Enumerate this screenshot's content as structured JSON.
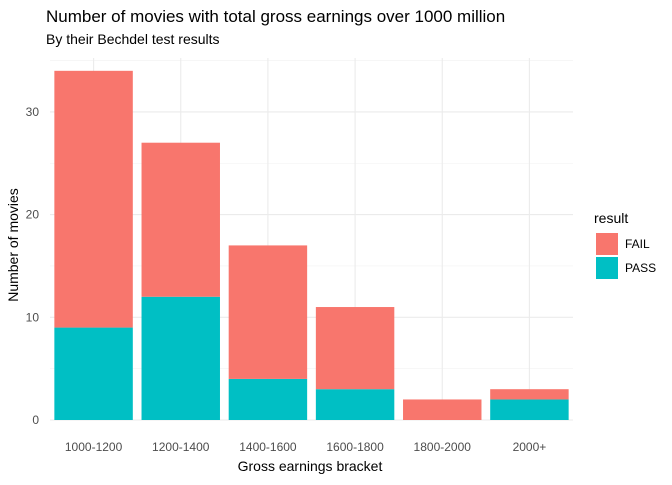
{
  "chart_data": {
    "type": "bar",
    "stacked": true,
    "title": "Number of movies with total gross earnings over 1000 million",
    "subtitle": "By their Bechdel test results",
    "xlabel": "Gross earnings bracket",
    "ylabel": "Number of movies",
    "categories": [
      "1000-1200",
      "1200-1400",
      "1400-1600",
      "1600-1800",
      "1800-2000",
      "2000+"
    ],
    "series": [
      {
        "name": "PASS",
        "color": "#00BFC4",
        "values": [
          9,
          12,
          4,
          3,
          0,
          2
        ]
      },
      {
        "name": "FAIL",
        "color": "#F8766D",
        "values": [
          25,
          15,
          13,
          8,
          2,
          1
        ]
      }
    ],
    "ylim": [
      0,
      35
    ],
    "yticks": [
      0,
      10,
      20,
      30
    ],
    "grid": true,
    "legend": {
      "title": "result",
      "position": "right",
      "entries": [
        {
          "label": "FAIL",
          "color": "#F8766D"
        },
        {
          "label": "PASS",
          "color": "#00BFC4"
        }
      ]
    }
  }
}
